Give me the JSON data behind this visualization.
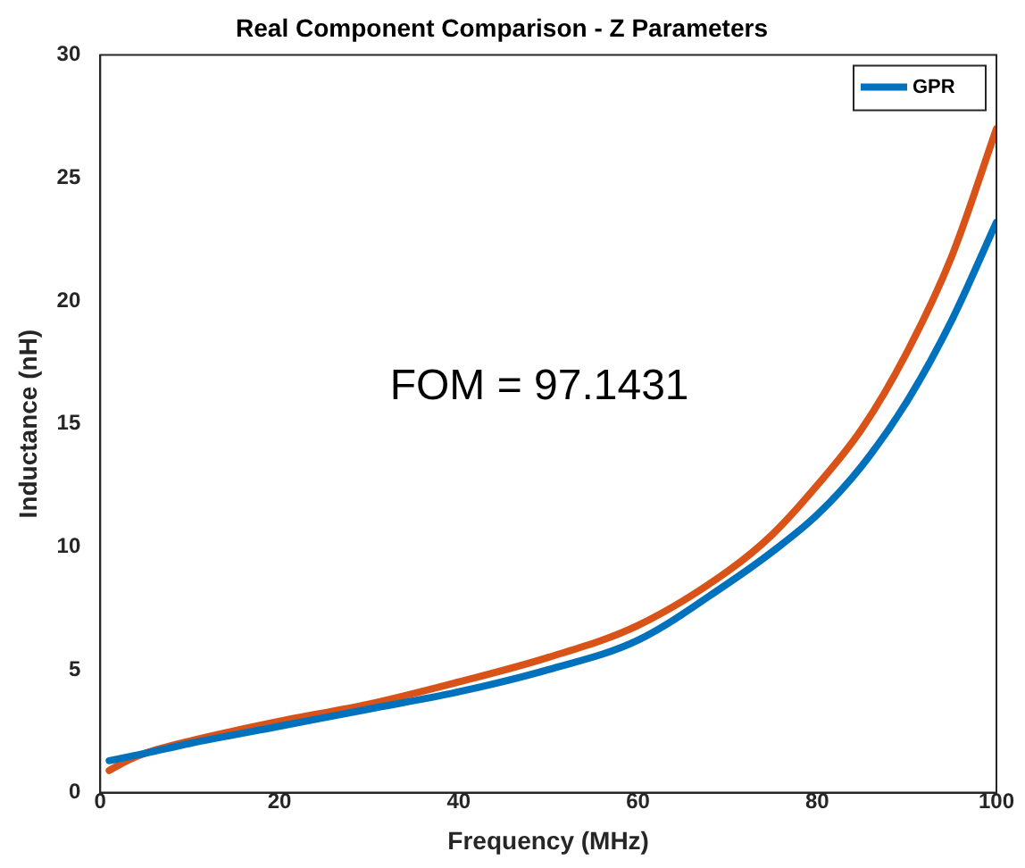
{
  "chart_data": {
    "type": "line",
    "title": "Real Component Comparison - Z Parameters",
    "xlabel": "Frequency (MHz)",
    "ylabel": "Inductance (nH)",
    "annotations": [
      "FOM = 97.1431"
    ],
    "xlim": [
      0,
      100
    ],
    "ylim": [
      0,
      30
    ],
    "xticks": [
      0,
      20,
      40,
      60,
      80,
      100
    ],
    "yticks": [
      0,
      5,
      10,
      15,
      20,
      25,
      30
    ],
    "grid": false,
    "legend": "top right",
    "marker": "none",
    "line_style": "solid",
    "series": [
      {
        "name": "GPR",
        "color": "#0072bd",
        "x": [
          1,
          5,
          10,
          20,
          30,
          40,
          50,
          60,
          70,
          75,
          80,
          85,
          90,
          95,
          100
        ],
        "values": [
          1.3,
          1.6,
          2.0,
          2.7,
          3.4,
          4.1,
          5.0,
          6.2,
          8.5,
          9.8,
          11.3,
          13.3,
          15.9,
          19.2,
          23.2
        ]
      },
      {
        "color": "#d95319",
        "x": [
          1,
          3,
          5,
          10,
          20,
          30,
          40,
          50,
          60,
          70,
          75,
          80,
          85,
          90,
          95,
          100
        ],
        "values": [
          0.9,
          1.3,
          1.6,
          2.1,
          2.9,
          3.6,
          4.5,
          5.5,
          6.8,
          9.0,
          10.5,
          12.5,
          14.8,
          17.9,
          21.8,
          27
        ]
      }
    ]
  }
}
